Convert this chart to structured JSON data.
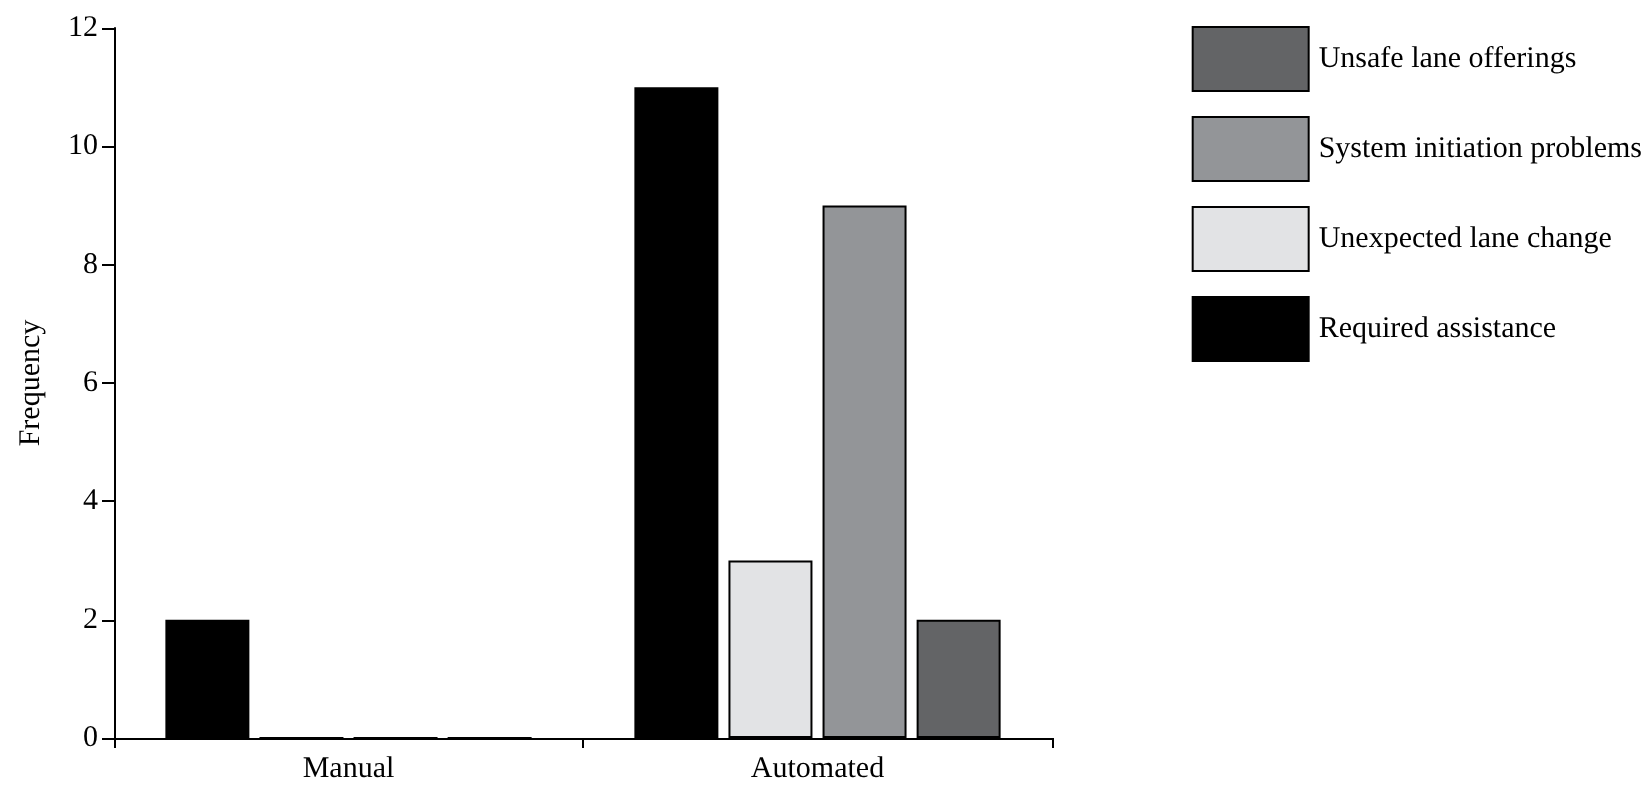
{
  "chart_data": {
    "type": "bar",
    "ylabel": "Frequency",
    "categories": [
      "Manual",
      "Automated"
    ],
    "series": [
      {
        "name": "Required assistance",
        "color": "#000000",
        "values": [
          2,
          11
        ]
      },
      {
        "name": "Unexpected lane change",
        "color": "#e2e3e5",
        "values": [
          0,
          3
        ]
      },
      {
        "name": "System initiation problems",
        "color": "#939598",
        "values": [
          0,
          9
        ]
      },
      {
        "name": "Unsafe lane offerings",
        "color": "#636466",
        "values": [
          0,
          2
        ]
      }
    ],
    "ylim": [
      0,
      12
    ],
    "yticks": [
      0,
      2,
      4,
      6,
      8,
      10,
      12
    ],
    "grid": false,
    "legend": "right"
  }
}
